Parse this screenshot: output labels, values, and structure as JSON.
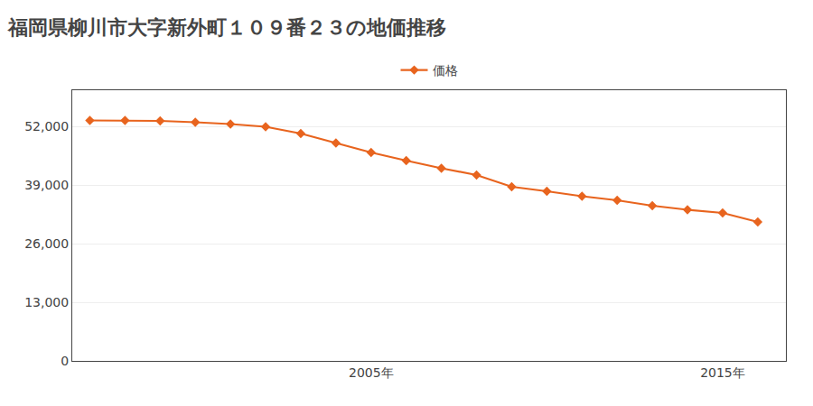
{
  "chart_data": {
    "type": "line",
    "title": "福岡県柳川市大字新外町１０９番２３の地価推移",
    "series": [
      {
        "name": "価格",
        "color": "#e8641e",
        "marker": "diamond",
        "values": [
          53300,
          53300,
          53200,
          52900,
          52500,
          51900,
          50400,
          48300,
          46200,
          44400,
          42700,
          41200,
          38600,
          37600,
          36500,
          35600,
          34400,
          33500,
          32800,
          30800
        ]
      }
    ],
    "x": [
      1997,
      1998,
      1999,
      2000,
      2001,
      2002,
      2003,
      2004,
      2005,
      2006,
      2007,
      2008,
      2009,
      2010,
      2011,
      2012,
      2013,
      2014,
      2015,
      2016
    ],
    "xlim": [
      1996.5,
      2016.8
    ],
    "xticks": [
      {
        "value": 2005,
        "label": "2005年"
      },
      {
        "value": 2015,
        "label": "2015年"
      }
    ],
    "ylim": [
      0,
      60000
    ],
    "yticks": [
      0,
      {
        "value": 13000,
        "label": "13,000"
      },
      {
        "value": 26000,
        "label": "26,000"
      },
      {
        "value": 39000,
        "label": "39,000"
      },
      {
        "value": 52000,
        "label": "52,000"
      }
    ],
    "grid": "y",
    "legend": "top"
  }
}
